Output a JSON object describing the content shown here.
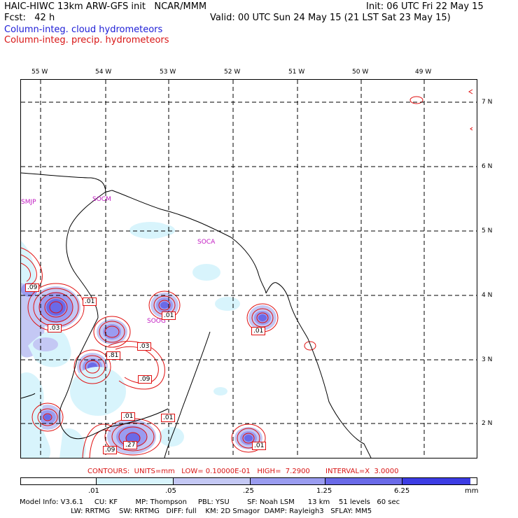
{
  "header": {
    "model_title": "HAIC-HIWC 13km ARW-GFS init   NCAR/MMM",
    "init": "Init: 06 UTC Fri 22 May 15",
    "fcst": "Fcst:   42 h",
    "valid": "Valid: 00 UTC Sun 24 May 15 (21 LST Sat 23 May 15)",
    "field1": "Column-integ. cloud hydrometeors",
    "field2": "Column-integ. precip. hydrometeors"
  },
  "map": {
    "lon_labels": [
      "55 W",
      "54 W",
      "53 W",
      "52 W",
      "51 W",
      "50 W",
      "49 W"
    ],
    "lat_labels": [
      "7 N",
      "6 N",
      "5 N",
      "4 N",
      "3 N",
      "2 N"
    ],
    "stations": [
      "SMJP",
      "SOCM",
      "SOCA",
      "SOOG"
    ],
    "contour_labels": [
      ".09",
      ".01",
      ".03",
      ".01",
      ".03",
      ".81",
      ".09",
      ".01",
      ".01",
      ".01",
      ".09",
      ".27",
      ".01"
    ],
    "colors": {
      "land_line": "#000000",
      "precip_contour": "#e01010",
      "grid_line": "#000000",
      "station": "#c21cc2"
    }
  },
  "contours_info": "CONTOURS:  UNITS=mm   LOW= 0.10000E-01   HIGH=  7.2900       INTERVAL=X  3.0000",
  "colorbar": {
    "labels": [
      ".01",
      ".05",
      ".25",
      "1.25",
      "6.25",
      "mm"
    ],
    "colors": [
      "#ffffff",
      "#d8f4fc",
      "#c4c8f4",
      "#9a9cf0",
      "#6a6ae8",
      "#3c3ce4",
      "#1c1cee"
    ]
  },
  "footer": {
    "line1": "Model Info: V3.6.1     CU: KF        MP: Thompson     PBL: YSU        SF: Noah LSM      13 km    51 levels   60 sec",
    "line2": "                       LW: RRTMG    SW: RRTMG   DIFF: full    KM: 2D Smagor  DAMP: Rayleigh3   SFLAY: MM5"
  }
}
